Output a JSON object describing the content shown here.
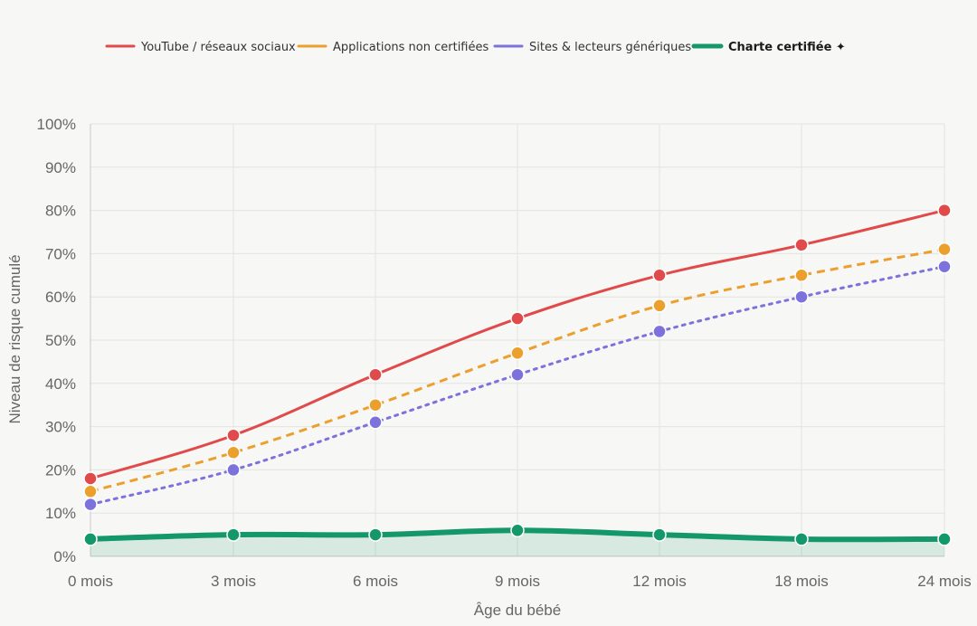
{
  "chart_data": {
    "type": "line",
    "x": [
      "0 mois",
      "3 mois",
      "6 mois",
      "9 mois",
      "12 mois",
      "18 mois",
      "24 mois"
    ],
    "xlabel": "Âge du bébé",
    "ylabel": "Niveau de risque cumulé",
    "ylim": [
      0,
      100
    ],
    "yticks": [
      "0%",
      "10%",
      "20%",
      "30%",
      "40%",
      "50%",
      "60%",
      "70%",
      "80%",
      "90%",
      "100%"
    ],
    "grid": true,
    "legend_position": "top",
    "series": [
      {
        "name": "YouTube / réseaux sociaux",
        "values": [
          18,
          28,
          42,
          55,
          65,
          72,
          80
        ],
        "color": "#e04a4a",
        "style": "solid"
      },
      {
        "name": "Applications non certifiées",
        "values": [
          15,
          24,
          35,
          47,
          58,
          65,
          71
        ],
        "color": "#eba02e",
        "style": "dashed"
      },
      {
        "name": "Sites & lecteurs génériques",
        "values": [
          12,
          20,
          31,
          42,
          52,
          60,
          67
        ],
        "color": "#7d72dc",
        "style": "dotted"
      },
      {
        "name": "Charte certifiée ✦",
        "values": [
          4,
          5,
          5,
          6,
          5,
          4,
          4
        ],
        "color": "#14976b",
        "style": "thick-fill"
      }
    ]
  }
}
